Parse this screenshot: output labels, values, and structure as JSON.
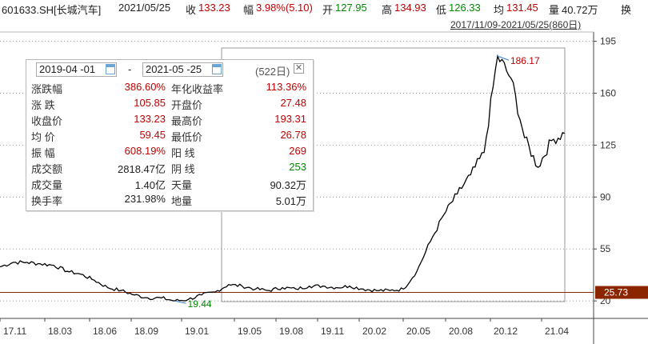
{
  "header": {
    "symbol": "601633.SH[长城汽车]",
    "date": "2021/05/25",
    "close_label": "收",
    "close_value": "133.23",
    "change_label": "幅",
    "change_value": "3.98%(5.10)",
    "open_label": "开",
    "open_value": "127.95",
    "high_label": "高",
    "high_value": "134.93",
    "low_label": "低",
    "low_value": "126.33",
    "avg_label": "均",
    "avg_value": "131.45",
    "volume_label": "量",
    "volume_value": "40.72万",
    "turnover_label": "换"
  },
  "range_label": "2017/11/09-2021/05/25(860日)",
  "panel": {
    "start_date": "2019-04 -01",
    "end_date": "2021-05 -25",
    "dash": "-",
    "days": "(522日)",
    "rows": [
      {
        "l1": "涨跌幅",
        "v1": "386.60%",
        "c1": "red",
        "l2": "年化收益率",
        "v2": "113.36%",
        "c2": "red"
      },
      {
        "l1": "涨    跌",
        "v1": "105.85",
        "c1": "red",
        "l2": "开盘价",
        "v2": "27.48",
        "c2": "red"
      },
      {
        "l1": "收盘价",
        "v1": "133.23",
        "c1": "red",
        "l2": "最高价",
        "v2": "193.31",
        "c2": "red"
      },
      {
        "l1": "均    价",
        "v1": "59.45",
        "c1": "red",
        "l2": "最低价",
        "v2": "26.78",
        "c2": "red"
      },
      {
        "l1": "振    幅",
        "v1": "608.19%",
        "c1": "red",
        "l2": "阳    线",
        "v2": "269",
        "c2": "red"
      },
      {
        "l1": "成交额",
        "v1": "2818.47亿",
        "c1": "black",
        "l2": "阴    线",
        "v2": "253",
        "c2": "green"
      },
      {
        "l1": "成交量",
        "v1": "1.40亿",
        "c1": "black",
        "l2": "天量",
        "v2": "90.32万",
        "c2": "black"
      },
      {
        "l1": "换手率",
        "v1": "231.98%",
        "c1": "black",
        "l2": "地量",
        "v2": "5.01万",
        "c2": "black"
      }
    ]
  },
  "chart_data": {
    "type": "line",
    "title": "",
    "ylim": [
      19,
      198
    ],
    "y_ticks": [
      20,
      55,
      90,
      125,
      160,
      195
    ],
    "x_ticks": [
      "17.11",
      "18.03",
      "18.06",
      "18.09",
      "19.01",
      "19.05",
      "19.08",
      "19.11",
      "20.02",
      "20.05",
      "20.08",
      "20.12",
      "21.04"
    ],
    "current_price_label": "25.73",
    "max_label": "186.17",
    "min_label": "19.44",
    "x": [
      "2017-11",
      "2017-12",
      "2018-01",
      "2018-02",
      "2018-03",
      "2018-04",
      "2018-05",
      "2018-06",
      "2018-07",
      "2018-08",
      "2018-09",
      "2018-10",
      "2018-11",
      "2018-12",
      "2019-01",
      "2019-02",
      "2019-03",
      "2019-04",
      "2019-05",
      "2019-06",
      "2019-07",
      "2019-08",
      "2019-09",
      "2019-10",
      "2019-11",
      "2019-12",
      "2020-01",
      "2020-02",
      "2020-03",
      "2020-04",
      "2020-05",
      "2020-06",
      "2020-07",
      "2020-08",
      "2020-09",
      "2020-10",
      "2020-11",
      "2020-12",
      "2021-01",
      "2021-02",
      "2021-03",
      "2021-04",
      "2021-05"
    ],
    "values": [
      43,
      46,
      46,
      45,
      44,
      40,
      38,
      34,
      29,
      27,
      24,
      22,
      22,
      20,
      21,
      24,
      26,
      31,
      30,
      28,
      27,
      29,
      28,
      30,
      30,
      29,
      30,
      28,
      27,
      27,
      28,
      40,
      60,
      78,
      92,
      105,
      120,
      185,
      170,
      130,
      110,
      128,
      133
    ]
  },
  "colors": {
    "price_line": "#000000",
    "baseline": "#8b2500",
    "tag_bg": "#8b2500",
    "up": "#c00000",
    "down": "#008a00"
  }
}
